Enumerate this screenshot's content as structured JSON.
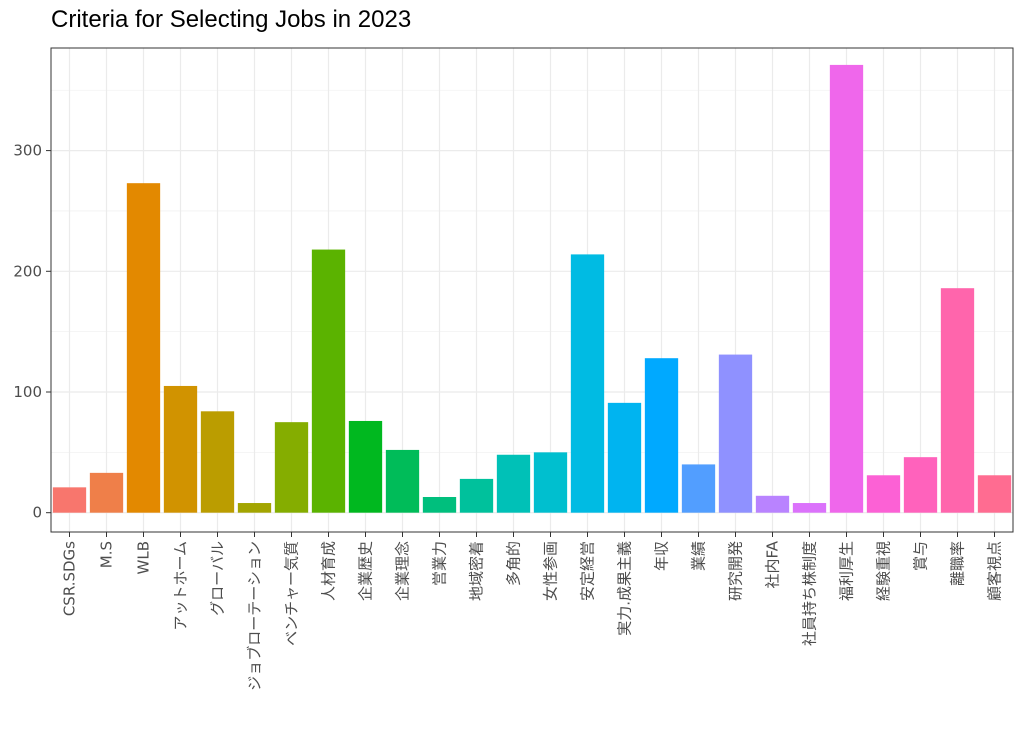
{
  "chart_data": {
    "type": "bar",
    "title": "Criteria for Selecting Jobs in 2023",
    "xlabel": "",
    "ylabel": "",
    "ylim": [
      -16,
      385
    ],
    "yticks": [
      0,
      100,
      200,
      300
    ],
    "grid": true,
    "legend": "none",
    "categories": [
      "CSR.SDGs",
      "M.S",
      "WLB",
      "アットホーム",
      "グローバル",
      "ジョブローテーション",
      "ベンチャー気質",
      "人材育成",
      "企業歴史",
      "企業理念",
      "営業力",
      "地域密着",
      "多角的",
      "女性参画",
      "安定経営",
      "実力.成果主義",
      "年収",
      "業績",
      "研究開発",
      "社内FA",
      "社員持ち株制度",
      "福利厚生",
      "経験重視",
      "賞与",
      "離職率",
      "顧客視点"
    ],
    "values": [
      21,
      33,
      273,
      105,
      84,
      8,
      75,
      218,
      76,
      52,
      13,
      28,
      48,
      50,
      214,
      91,
      128,
      40,
      131,
      14,
      8,
      371,
      31,
      46,
      186,
      31
    ],
    "colors": [
      "#F8766D",
      "#EF7F49",
      "#E38900",
      "#D19300",
      "#BB9D00",
      "#A3A500",
      "#85AD00",
      "#5BB300",
      "#00B81F",
      "#00BC59",
      "#00BF7D",
      "#00C19C",
      "#00C1B7",
      "#00BFCF",
      "#00BBE3",
      "#00B4F0",
      "#00A9FF",
      "#529EFF",
      "#8F91FF",
      "#B983FF",
      "#DB72FB",
      "#EF67EB",
      "#FC61D5",
      "#FF62BC",
      "#FF65AC",
      "#FF6C91"
    ]
  }
}
